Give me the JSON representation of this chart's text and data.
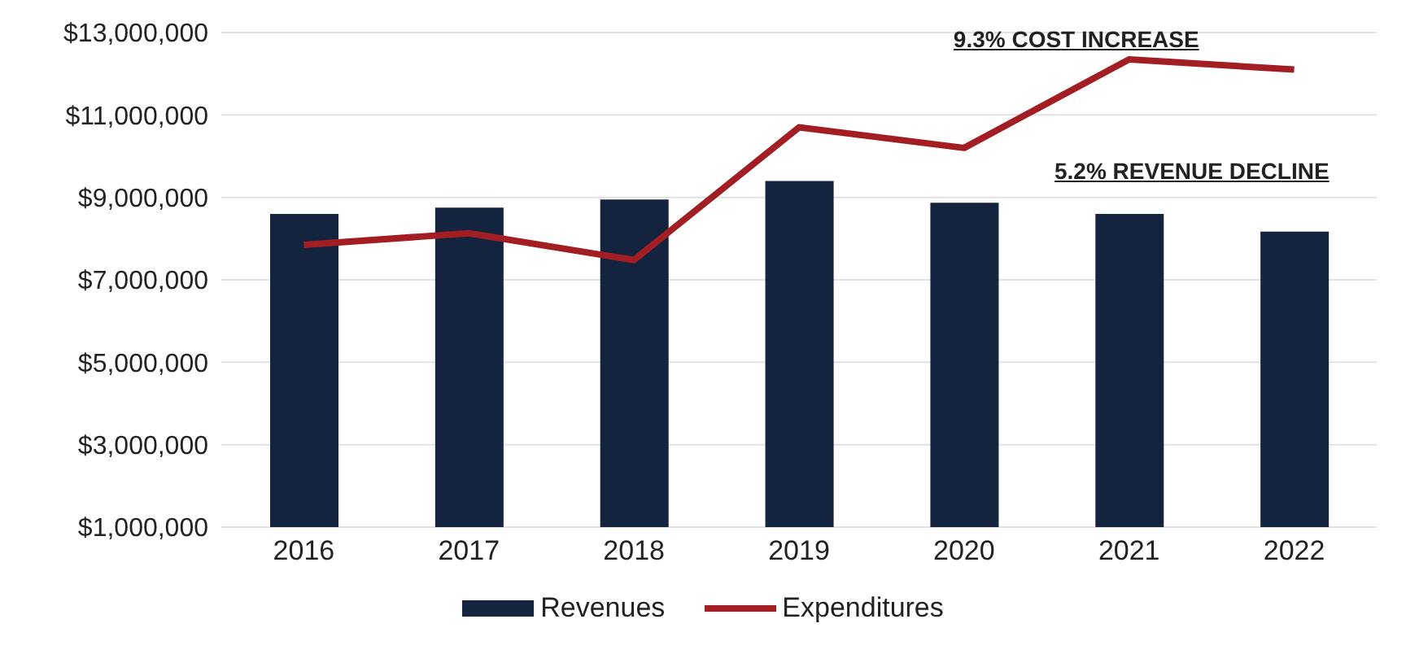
{
  "chart_data": {
    "type": "bar",
    "categories": [
      "2016",
      "2017",
      "2018",
      "2019",
      "2020",
      "2021",
      "2022"
    ],
    "series": [
      {
        "name": "Revenues",
        "color": "#14243f",
        "values": [
          8600000,
          8750000,
          8950000,
          9400000,
          8870000,
          8600000,
          8170000
        ]
      },
      {
        "name": "Expenditures",
        "type": "line",
        "color": "#a31e22",
        "values": [
          7850000,
          8130000,
          7480000,
          10700000,
          10200000,
          12350000,
          12100000
        ]
      }
    ],
    "ylim": [
      1000000,
      13000000
    ],
    "yticks": [
      {
        "value": 1000000,
        "label": "$1,000,000"
      },
      {
        "value": 3000000,
        "label": "$3,000,000"
      },
      {
        "value": 5000000,
        "label": "$5,000,000"
      },
      {
        "value": 7000000,
        "label": "$7,000,000"
      },
      {
        "value": 9000000,
        "label": "$9,000,000"
      },
      {
        "value": 11000000,
        "label": "$11,000,000"
      },
      {
        "value": 13000000,
        "label": "$13,000,000"
      }
    ],
    "grid": "y",
    "legend": "bottom",
    "marker": "none",
    "annotations": [
      "9.3% COST INCREASE",
      "5.2% REVENUE DECLINE"
    ]
  }
}
